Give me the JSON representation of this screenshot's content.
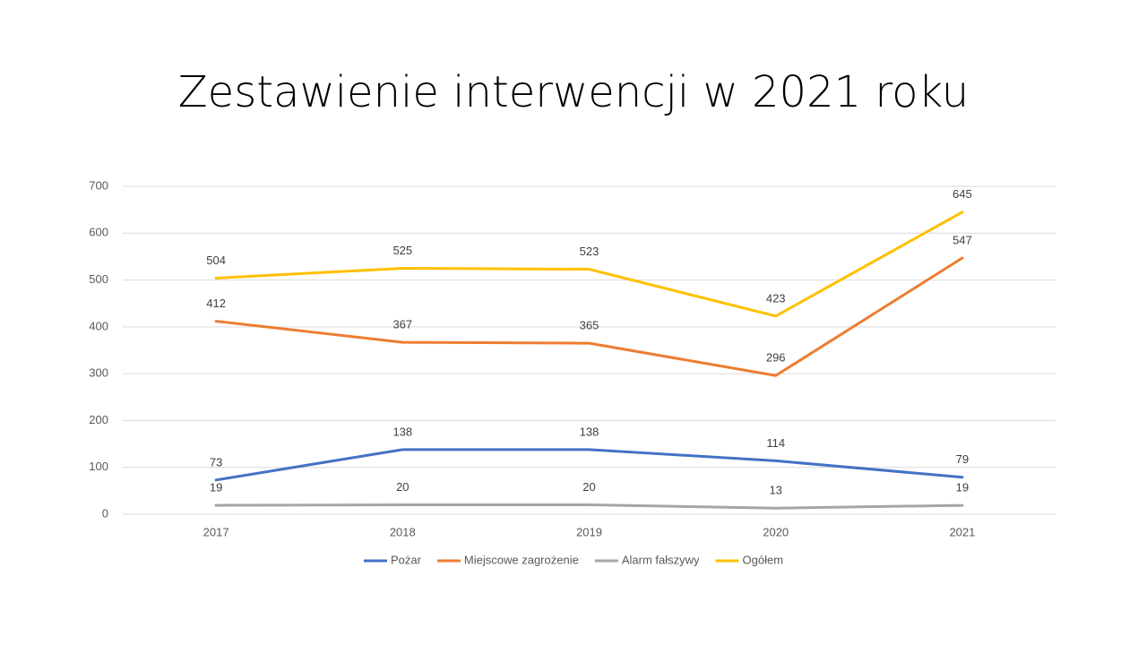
{
  "chart_data": {
    "type": "line",
    "title": "Zestawienie interwencji w 2021 roku",
    "categories": [
      "2017",
      "2018",
      "2019",
      "2020",
      "2021"
    ],
    "series": [
      {
        "name": "Pożar",
        "color": "#4472c4",
        "values": [
          73,
          138,
          138,
          114,
          79
        ]
      },
      {
        "name": "Miejscowe zagrożenie",
        "color": "#ed7d31",
        "values": [
          412,
          367,
          365,
          296,
          547
        ]
      },
      {
        "name": "Alarm fałszywy",
        "color": "#a5a5a5",
        "values": [
          19,
          20,
          20,
          13,
          19
        ]
      },
      {
        "name": "Ogółem",
        "color": "#ffc000",
        "values": [
          504,
          525,
          523,
          423,
          645
        ]
      }
    ],
    "ylim": [
      0,
      700
    ],
    "yticks": [
      0,
      100,
      200,
      300,
      400,
      500,
      600,
      700
    ],
    "grid": true,
    "legend": "bottom"
  }
}
